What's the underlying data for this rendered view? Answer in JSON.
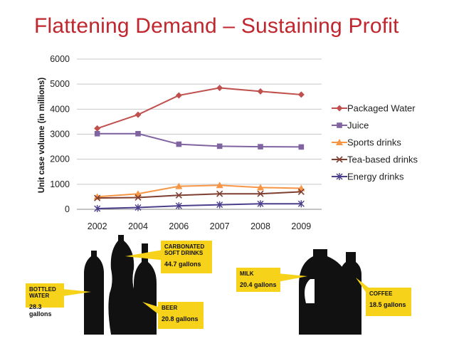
{
  "slide": {
    "title": "Flattening Demand – Sustaining Profit"
  },
  "chart_data": {
    "type": "line",
    "title": "",
    "xlabel": "",
    "ylabel": "Unit case volume (in millions)",
    "categories": [
      "2002",
      "2004",
      "2006",
      "2007",
      "2008",
      "2009"
    ],
    "ylim": [
      0,
      6000
    ],
    "yticks": [
      0,
      1000,
      2000,
      3000,
      4000,
      5000,
      6000
    ],
    "grid": true,
    "legend_position": "right",
    "series": [
      {
        "name": "Packaged Water",
        "color": "#c0504d",
        "marker": "diamond",
        "values": [
          3230,
          3780,
          4550,
          4850,
          4710,
          4580
        ]
      },
      {
        "name": "Juice",
        "color": "#8064a2",
        "marker": "square",
        "values": [
          3020,
          3020,
          2600,
          2520,
          2500,
          2490
        ]
      },
      {
        "name": "Sports drinks",
        "color": "#f79646",
        "marker": "triangle",
        "values": [
          500,
          620,
          920,
          960,
          870,
          840
        ]
      },
      {
        "name": "Tea-based drinks",
        "color": "#7f3f30",
        "marker": "x",
        "values": [
          450,
          470,
          560,
          620,
          620,
          700
        ]
      },
      {
        "name": "Energy drinks",
        "color": "#4b3f8c",
        "marker": "star",
        "values": [
          30,
          70,
          140,
          180,
          220,
          220
        ]
      }
    ]
  },
  "illustration": {
    "callouts": [
      {
        "name": "Bottled Water",
        "value": "28.3 gallons"
      },
      {
        "name": "Carbonated Soft Drinks",
        "value": "44.7 gallons"
      },
      {
        "name": "Beer",
        "value": "20.8 gallons"
      },
      {
        "name": "Milk",
        "value": "20.4 gallons"
      },
      {
        "name": "Coffee",
        "value": "18.5 gallons"
      }
    ]
  }
}
